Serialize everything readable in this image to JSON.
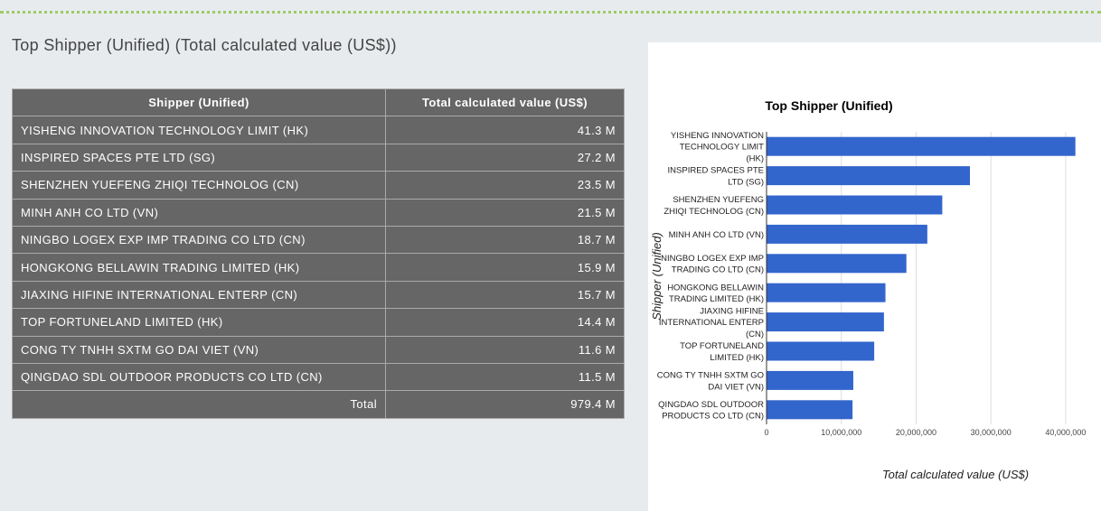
{
  "header": {
    "title": "Top Shipper (Unified) (Total calculated value (US$))"
  },
  "table": {
    "columns": [
      "Shipper (Unified)",
      "Total calculated value (US$)"
    ],
    "rows": [
      [
        "YISHENG INNOVATION TECHNOLOGY LIMIT (HK)",
        "41.3 M"
      ],
      [
        "INSPIRED SPACES PTE LTD (SG)",
        "27.2 M"
      ],
      [
        "SHENZHEN YUEFENG ZHIQI TECHNOLOG (CN)",
        "23.5 M"
      ],
      [
        "MINH ANH CO LTD (VN)",
        "21.5 M"
      ],
      [
        "NINGBO LOGEX EXP IMP TRADING CO LTD (CN)",
        "18.7 M"
      ],
      [
        "HONGKONG BELLAWIN TRADING LIMITED (HK)",
        "15.9 M"
      ],
      [
        "JIAXING HIFINE INTERNATIONAL ENTERP (CN)",
        "15.7 M"
      ],
      [
        "TOP FORTUNELAND LIMITED (HK)",
        "14.4 M"
      ],
      [
        "CONG TY TNHH SXTM GO DAI VIET (VN)",
        "11.6 M"
      ],
      [
        "QINGDAO SDL OUTDOOR PRODUCTS CO LTD (CN)",
        "11.5 M"
      ]
    ],
    "total": [
      "Total",
      "979.4 M"
    ]
  },
  "chart_data": {
    "type": "hbar",
    "title": "Top Shipper (Unified)",
    "x_label": "Total calculated value (US$)",
    "y_label": "Shipper (Unified)",
    "categories": [
      "YISHENG INNOVATION TECHNOLOGY LIMIT (HK)",
      "INSPIRED SPACES PTE LTD (SG)",
      "SHENZHEN YUEFENG ZHIQI TECHNOLOG (CN)",
      "MINH ANH CO LTD (VN)",
      "NINGBO LOGEX EXP IMP TRADING CO LTD (CN)",
      "HONGKONG BELLAWIN TRADING LIMITED (HK)",
      "JIAXING HIFINE INTERNATIONAL ENTERP (CN)",
      "TOP FORTUNELAND LIMITED (HK)",
      "CONG TY TNHH SXTM GO DAI VIET (VN)",
      "QINGDAO SDL OUTDOOR PRODUCTS CO LTD (CN)"
    ],
    "values": [
      41300000,
      27200000,
      23500000,
      21500000,
      18700000,
      15900000,
      15700000,
      14400000,
      11600000,
      11500000
    ],
    "color": "#3366cc",
    "xlim": [
      0,
      44000000
    ],
    "xticks": [
      0,
      {
        "value": 10000000,
        "label": "10,000,000"
      },
      {
        "value": 20000000,
        "label": "20,000,000"
      },
      {
        "value": 30000000,
        "label": "30,000,000"
      },
      {
        "value": 40000000,
        "label": "40,000,000"
      }
    ],
    "grid": true
  }
}
